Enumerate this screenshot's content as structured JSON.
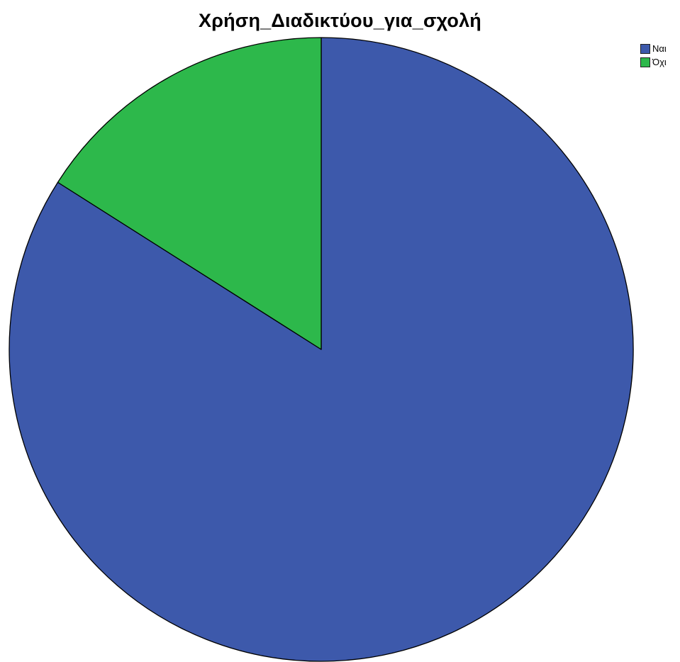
{
  "chart_data": {
    "type": "pie",
    "title": "Χρήση_Διαδικτύου_για_σχολή",
    "categories": [
      "Ναι",
      "Όχι"
    ],
    "values": [
      84,
      16
    ],
    "colors": [
      "#3d59ab",
      "#2db84b"
    ],
    "start_angle_deg": 0,
    "direction": "clockwise",
    "legend_position": "top-right",
    "edge_color": "#000000"
  }
}
